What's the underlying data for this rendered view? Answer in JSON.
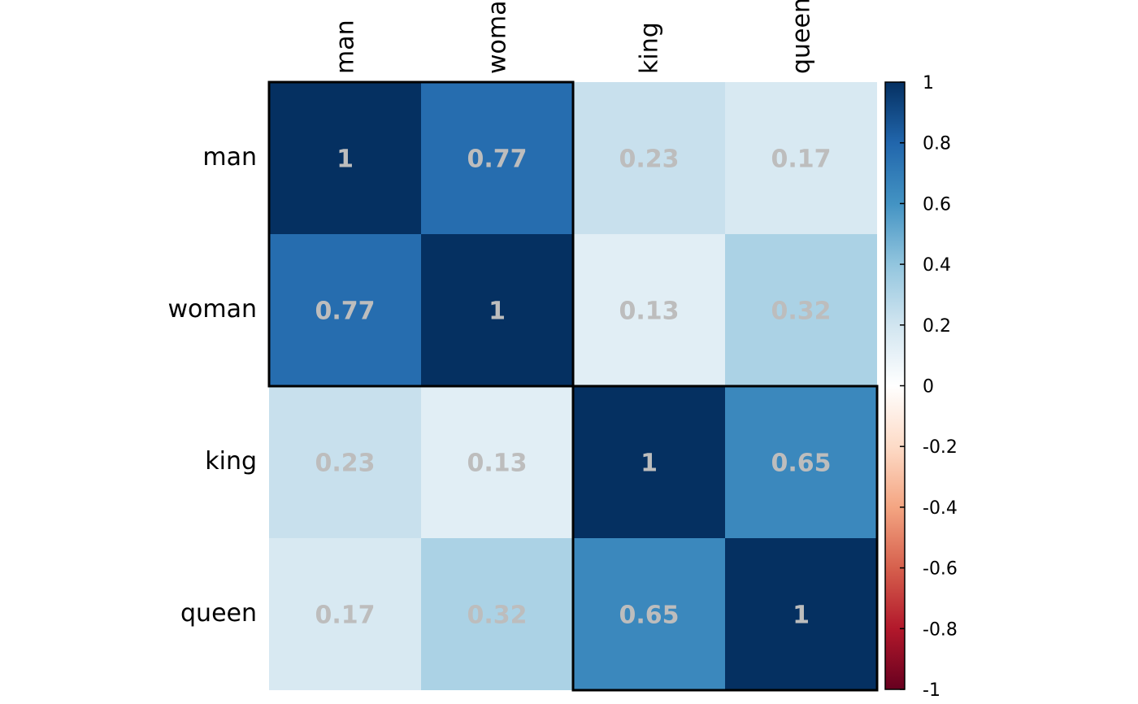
{
  "chart_data": {
    "type": "heatmap",
    "title": "",
    "variables": [
      "man",
      "woman",
      "king",
      "queen"
    ],
    "matrix": [
      [
        1,
        0.77,
        0.23,
        0.17
      ],
      [
        0.77,
        1,
        0.13,
        0.32
      ],
      [
        0.23,
        0.13,
        1,
        0.65
      ],
      [
        0.17,
        0.32,
        0.65,
        1
      ]
    ],
    "cell_labels": [
      [
        "1",
        "0.77",
        "0.23",
        "0.17"
      ],
      [
        "0.77",
        "1",
        "0.13",
        "0.32"
      ],
      [
        "0.23",
        "0.13",
        "1",
        "0.65"
      ],
      [
        "0.17",
        "0.32",
        "0.65",
        "1"
      ]
    ],
    "clusters": [
      {
        "start": 0,
        "end": 1
      },
      {
        "start": 2,
        "end": 3
      }
    ],
    "color_scale": {
      "min": -1,
      "max": 1,
      "ticks": [
        "1",
        "0.8",
        "0.6",
        "0.4",
        "0.2",
        "0",
        "-0.2",
        "-0.4",
        "-0.6",
        "-0.8",
        "-1"
      ],
      "colors": [
        "#67001F",
        "#B2182B",
        "#D6604D",
        "#F4A582",
        "#FDDBC7",
        "#FFFFFF",
        "#D1E5F0",
        "#92C5DE",
        "#4393C3",
        "#2166AC",
        "#053061"
      ]
    },
    "legend_position": "right"
  }
}
